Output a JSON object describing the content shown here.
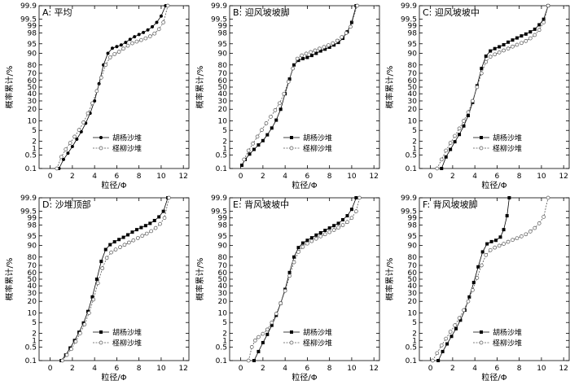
{
  "chart_data": [
    {
      "type": "line",
      "panel_label": "A: 平均",
      "xlabel": "粒径/Φ",
      "ylabel": "概率累计/%",
      "xlim": [
        -1,
        12.5
      ],
      "xticks": [
        0,
        2,
        4,
        6,
        8,
        10,
        12
      ],
      "yticks": [
        0.1,
        0.5,
        1,
        2,
        5,
        10,
        20,
        30,
        40,
        50,
        60,
        70,
        80,
        90,
        95,
        98,
        99,
        99.5,
        99.9
      ],
      "y_scale": "probability",
      "legend_position": "center-right",
      "series": [
        {
          "name": "胡杨沙堆",
          "marker": "filled-circle",
          "x": [
            0.8,
            1.2,
            1.6,
            2.0,
            2.4,
            2.8,
            3.2,
            3.6,
            4.0,
            4.4,
            4.8,
            5.2,
            5.6,
            6.0,
            6.4,
            6.8,
            7.2,
            7.6,
            8.0,
            8.4,
            8.8,
            9.2,
            9.6,
            10.0,
            10.4
          ],
          "y": [
            0.1,
            0.3,
            0.6,
            1.2,
            2.4,
            4.5,
            8.5,
            16,
            30,
            55,
            80,
            90,
            93,
            93.8,
            94.5,
            95.5,
            96.5,
            97.2,
            97.7,
            98.1,
            98.5,
            98.9,
            99.3,
            99.65,
            99.9
          ]
        },
        {
          "name": "柽柳沙堆",
          "marker": "open-circle",
          "x": [
            0.6,
            1.0,
            1.4,
            1.8,
            2.2,
            2.6,
            3.0,
            3.4,
            3.8,
            4.2,
            4.6,
            5.0,
            5.4,
            5.8,
            6.2,
            6.6,
            7.0,
            7.4,
            7.8,
            8.2,
            8.6,
            9.0,
            9.4,
            9.8,
            10.2,
            10.6
          ],
          "y": [
            0.1,
            0.4,
            0.9,
            1.7,
            3.0,
            5.2,
            9,
            16,
            27,
            44,
            64,
            80,
            87,
            89.5,
            91,
            92.8,
            94.2,
            95.2,
            95.8,
            96.3,
            96.8,
            97.3,
            97.9,
            98.6,
            99.3,
            99.9
          ]
        }
      ]
    },
    {
      "type": "line",
      "panel_label": "B: 迎风坡坡脚",
      "xlabel": "粒径/Φ",
      "ylabel": "概率累计/%",
      "xlim": [
        -1,
        12.5
      ],
      "xticks": [
        0,
        2,
        4,
        6,
        8,
        10,
        12
      ],
      "yticks": [
        0.1,
        0.5,
        1,
        2,
        5,
        10,
        20,
        30,
        40,
        50,
        60,
        70,
        80,
        90,
        95,
        98,
        99,
        99.5,
        99.9
      ],
      "y_scale": "probability",
      "legend_position": "center-right",
      "series": [
        {
          "name": "胡杨沙堆",
          "marker": "filled-square",
          "x": [
            0.1,
            0.4,
            0.8,
            1.2,
            1.6,
            2.0,
            2.4,
            2.8,
            3.2,
            3.6,
            4.0,
            4.4,
            4.8,
            5.2,
            5.6,
            6.0,
            6.4,
            6.8,
            7.2,
            7.6,
            8.0,
            8.4,
            8.8,
            9.2,
            9.6,
            10.0,
            10.4
          ],
          "y": [
            0.15,
            0.3,
            0.55,
            0.9,
            1.4,
            2.1,
            3.5,
            6,
            10.5,
            20,
            40,
            62,
            80,
            84.5,
            86,
            87,
            88.5,
            90,
            91.5,
            92.5,
            93.5,
            94.5,
            95.5,
            96.8,
            98.2,
            99.3,
            99.9
          ]
        },
        {
          "name": "柽柳沙堆",
          "marker": "open-circle",
          "x": [
            0.3,
            0.7,
            1.1,
            1.5,
            1.9,
            2.3,
            2.7,
            3.1,
            3.5,
            3.9,
            4.3,
            4.7,
            5.1,
            5.5,
            5.9,
            6.3,
            6.7,
            7.1,
            7.5,
            7.9,
            8.3,
            8.7,
            9.1,
            9.5,
            9.9,
            10.5
          ],
          "y": [
            0.3,
            0.8,
            1.6,
            3,
            5.2,
            8.5,
            13,
            19,
            27,
            40,
            58,
            76,
            86,
            88.5,
            89.8,
            90.8,
            91.8,
            92.8,
            93.6,
            94.4,
            95.2,
            96.1,
            97.1,
            98,
            98.9,
            99.9
          ]
        }
      ]
    },
    {
      "type": "line",
      "panel_label": "C: 迎风坡坡中",
      "xlabel": "粒径/Φ",
      "ylabel": "概率累计/%",
      "xlim": [
        -1,
        12.5
      ],
      "xticks": [
        0,
        2,
        4,
        6,
        8,
        10,
        12
      ],
      "yticks": [
        0.1,
        0.5,
        1,
        2,
        5,
        10,
        20,
        30,
        40,
        50,
        60,
        70,
        80,
        90,
        95,
        98,
        99,
        99.5,
        99.9
      ],
      "y_scale": "probability",
      "legend_position": "center-right",
      "series": [
        {
          "name": "胡杨沙堆",
          "marker": "filled-square",
          "x": [
            1.0,
            1.4,
            1.8,
            2.2,
            2.6,
            3.0,
            3.4,
            3.8,
            4.2,
            4.6,
            5.0,
            5.4,
            5.8,
            6.2,
            6.6,
            7.0,
            7.4,
            7.8,
            8.2,
            8.6,
            9.0,
            9.4,
            9.8,
            10.2,
            10.6
          ],
          "y": [
            0.1,
            0.4,
            0.9,
            1.9,
            3.6,
            7,
            14,
            28,
            52,
            76,
            88,
            91.5,
            92.8,
            93.7,
            94.6,
            95.6,
            96.3,
            96.9,
            97.4,
            97.8,
            98.2,
            98.6,
            99.1,
            99.5,
            99.9
          ]
        },
        {
          "name": "柽柳沙堆",
          "marker": "open-circle",
          "x": [
            0.6,
            1.0,
            1.4,
            1.8,
            2.2,
            2.6,
            3.0,
            3.4,
            3.8,
            4.2,
            4.6,
            5.0,
            5.4,
            5.8,
            6.2,
            6.6,
            7.0,
            7.4,
            7.8,
            8.2,
            8.6,
            9.0,
            9.4,
            9.8,
            10.2,
            10.6
          ],
          "y": [
            0.1,
            0.3,
            0.8,
            1.7,
            3.2,
            5.8,
            10,
            17,
            30,
            50,
            70,
            83,
            87.5,
            89.3,
            90.6,
            91.8,
            92.8,
            93.8,
            94.6,
            95.3,
            96,
            96.8,
            97.6,
            98.5,
            99.3,
            99.9
          ]
        }
      ]
    },
    {
      "type": "line",
      "panel_label": "D: 沙堆顶部",
      "xlabel": "粒径/Φ",
      "ylabel": "概率累计/%",
      "xlim": [
        -1,
        12.5
      ],
      "xticks": [
        0,
        2,
        4,
        6,
        8,
        10,
        12
      ],
      "yticks": [
        0.1,
        0.5,
        1,
        2,
        5,
        10,
        20,
        30,
        40,
        50,
        60,
        70,
        80,
        90,
        95,
        98,
        99,
        99.5,
        99.9
      ],
      "y_scale": "probability",
      "legend_position": "bottom-right",
      "series": [
        {
          "name": "胡杨沙堆",
          "marker": "filled-square",
          "x": [
            1.0,
            1.4,
            1.8,
            2.2,
            2.6,
            3.0,
            3.4,
            3.8,
            4.2,
            4.6,
            5.0,
            5.4,
            5.8,
            6.2,
            6.6,
            7.0,
            7.4,
            7.8,
            8.2,
            8.6,
            9.0,
            9.4,
            9.8,
            10.2,
            10.6
          ],
          "y": [
            0.1,
            0.2,
            0.45,
            1,
            2.2,
            4.8,
            11,
            25,
            50,
            75,
            87,
            90.5,
            92.2,
            93.4,
            94.4,
            95.4,
            96.3,
            97,
            97.5,
            97.9,
            98.3,
            98.7,
            99.1,
            99.5,
            99.9
          ]
        },
        {
          "name": "柽柳沙堆",
          "marker": "open-circle",
          "x": [
            1.1,
            1.5,
            1.9,
            2.3,
            2.7,
            3.1,
            3.5,
            3.9,
            4.3,
            4.7,
            5.1,
            5.5,
            5.9,
            6.3,
            6.7,
            7.1,
            7.5,
            7.9,
            8.3,
            8.7,
            9.1,
            9.5,
            9.9,
            10.3,
            10.7
          ],
          "y": [
            0.1,
            0.2,
            0.4,
            0.9,
            2,
            4.3,
            10,
            22,
            44,
            66,
            79,
            84.5,
            87,
            88.8,
            90.4,
            91.8,
            93,
            94.1,
            95,
            95.8,
            96.6,
            97.4,
            98.2,
            99,
            99.9
          ]
        }
      ]
    },
    {
      "type": "line",
      "panel_label": "E: 背风坡坡中",
      "xlabel": "粒径/Φ",
      "ylabel": "概率累计/%",
      "xlim": [
        -1,
        12.5
      ],
      "xticks": [
        0,
        2,
        4,
        6,
        8,
        10,
        12
      ],
      "yticks": [
        0.1,
        0.5,
        1,
        2,
        5,
        10,
        20,
        30,
        40,
        50,
        60,
        70,
        80,
        90,
        95,
        98,
        99,
        99.5,
        99.9
      ],
      "y_scale": "probability",
      "legend_position": "bottom-right",
      "series": [
        {
          "name": "胡杨沙堆",
          "marker": "filled-square",
          "x": [
            1.2,
            1.6,
            2.0,
            2.4,
            2.8,
            3.2,
            3.6,
            4.0,
            4.4,
            4.8,
            5.2,
            5.6,
            6.0,
            6.4,
            6.8,
            7.2,
            7.6,
            8.0,
            8.4,
            8.8,
            9.2,
            9.6,
            10.0,
            10.4
          ],
          "y": [
            0.1,
            0.3,
            0.8,
            1.8,
            4,
            8.5,
            18,
            35,
            60,
            80,
            88.5,
            91.5,
            93,
            94.2,
            95.3,
            96.1,
            96.8,
            97.4,
            97.9,
            98.3,
            98.8,
            99.2,
            99.6,
            99.9
          ]
        },
        {
          "name": "柽柳沙堆",
          "marker": "open-circle",
          "x": [
            0.7,
            1.0,
            1.3,
            1.6,
            2.0,
            2.4,
            2.8,
            3.2,
            3.6,
            4.0,
            4.4,
            4.8,
            5.2,
            5.6,
            6.0,
            6.4,
            6.8,
            7.2,
            7.6,
            8.0,
            8.4,
            8.8,
            9.2,
            9.6,
            10.0,
            10.4,
            10.7
          ],
          "y": [
            0.1,
            0.5,
            1,
            1.4,
            1.9,
            2.8,
            5,
            9.5,
            18,
            33,
            55,
            74,
            85,
            89,
            91.2,
            92.6,
            93.8,
            94.8,
            95.6,
            96.3,
            96.9,
            97.5,
            98,
            98.5,
            99,
            99.5,
            99.9
          ]
        }
      ]
    },
    {
      "type": "line",
      "panel_label": "F: 背风坡坡脚",
      "xlabel": "粒径/Φ",
      "ylabel": "概率累计/%",
      "xlim": [
        -1,
        12.5
      ],
      "xticks": [
        0,
        2,
        4,
        6,
        8,
        10,
        12
      ],
      "yticks": [
        0.1,
        0.5,
        1,
        2,
        5,
        10,
        20,
        30,
        40,
        50,
        60,
        70,
        80,
        90,
        95,
        98,
        99,
        99.5,
        99.9
      ],
      "y_scale": "probability",
      "legend_position": "bottom-right",
      "series": [
        {
          "name": "胡杨沙堆",
          "marker": "filled-square",
          "x": [
            0.7,
            1.1,
            1.5,
            1.9,
            2.3,
            2.7,
            3.1,
            3.5,
            3.9,
            4.3,
            4.7,
            5.1,
            5.5,
            5.9,
            6.3,
            6.6,
            6.9,
            7.1
          ],
          "y": [
            0.1,
            0.3,
            0.7,
            1.5,
            3,
            6,
            12,
            25,
            45,
            68,
            85,
            91,
            92.3,
            93,
            94.5,
            97,
            99.2,
            99.9
          ]
        },
        {
          "name": "柽柳沙堆",
          "marker": "open-circle",
          "x": [
            0.2,
            0.6,
            1.0,
            1.4,
            1.8,
            2.2,
            2.6,
            3.0,
            3.4,
            3.8,
            4.2,
            4.6,
            5.0,
            5.4,
            5.8,
            6.2,
            6.6,
            7.0,
            7.4,
            7.8,
            8.2,
            8.6,
            9.0,
            9.4,
            9.8,
            10.2,
            10.6
          ],
          "y": [
            0.1,
            0.25,
            0.6,
            1.2,
            2.3,
            4,
            7,
            12,
            20,
            34,
            52,
            70,
            82,
            86.5,
            88.5,
            89.8,
            91,
            92.2,
            93.2,
            94,
            94.8,
            95.6,
            96.5,
            97.4,
            98.3,
            99.1,
            99.9
          ]
        }
      ]
    }
  ]
}
